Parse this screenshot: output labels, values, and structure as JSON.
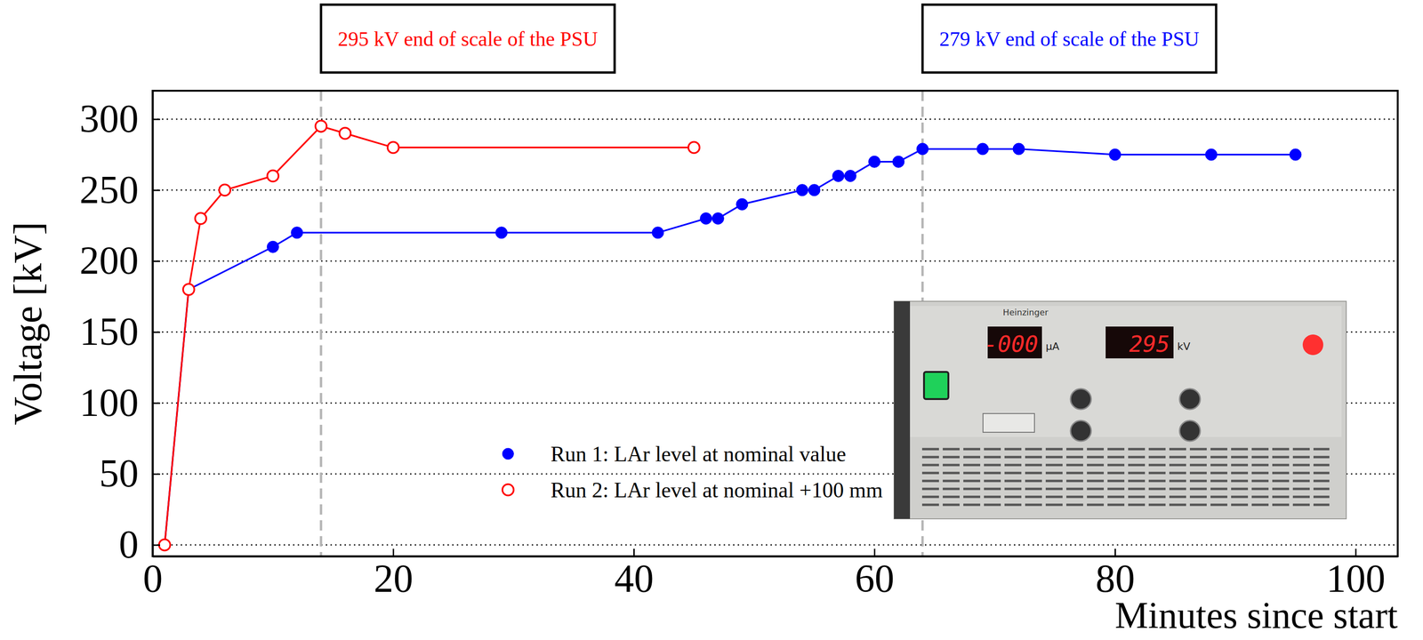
{
  "chart_data": {
    "type": "line",
    "y_label": "Voltage [kV]",
    "x_label": "Minutes since start",
    "xlim": [
      0,
      103.5
    ],
    "ylim": [
      -8,
      320
    ],
    "xticks": [
      0,
      20,
      40,
      60,
      80,
      100
    ],
    "yticks": [
      0,
      50,
      100,
      150,
      200,
      250,
      300
    ],
    "grid": true,
    "legend": "lower center",
    "series": [
      {
        "name": "Run 1: LAr level at nominal value",
        "color": "#0000ff",
        "marker": "circle",
        "line_style": "solid",
        "x": [
          1,
          3,
          10,
          12,
          29,
          42,
          46,
          47,
          49,
          54,
          55,
          57,
          58,
          60,
          62,
          64,
          69,
          72,
          80,
          88,
          95
        ],
        "values": [
          0,
          180,
          210,
          220,
          220,
          220,
          230,
          230,
          240,
          250,
          250,
          260,
          260,
          270,
          270,
          279,
          279,
          279,
          275,
          275,
          275
        ]
      },
      {
        "name": "Run 2: LAr level at nominal +100 mm",
        "color": "#ff0000",
        "marker": "open_circle",
        "line_style": "solid",
        "x": [
          1,
          3,
          4,
          6,
          10,
          14,
          16,
          20,
          45
        ],
        "values": [
          0,
          180,
          230,
          250,
          260,
          295,
          290,
          280,
          280
        ]
      }
    ],
    "annotations": [
      {
        "text": "295 kV end of scale of the PSU",
        "x": 14,
        "color": "#ff0000"
      },
      {
        "text": "279 kV end of scale of the PSU",
        "x": 64,
        "color": "#0000ff"
      }
    ],
    "inset": {
      "brand": "Heinzinger",
      "displays": [
        {
          "reading": "-000",
          "unit": "µA"
        },
        {
          "reading": "295",
          "unit": "kV"
        }
      ]
    }
  }
}
